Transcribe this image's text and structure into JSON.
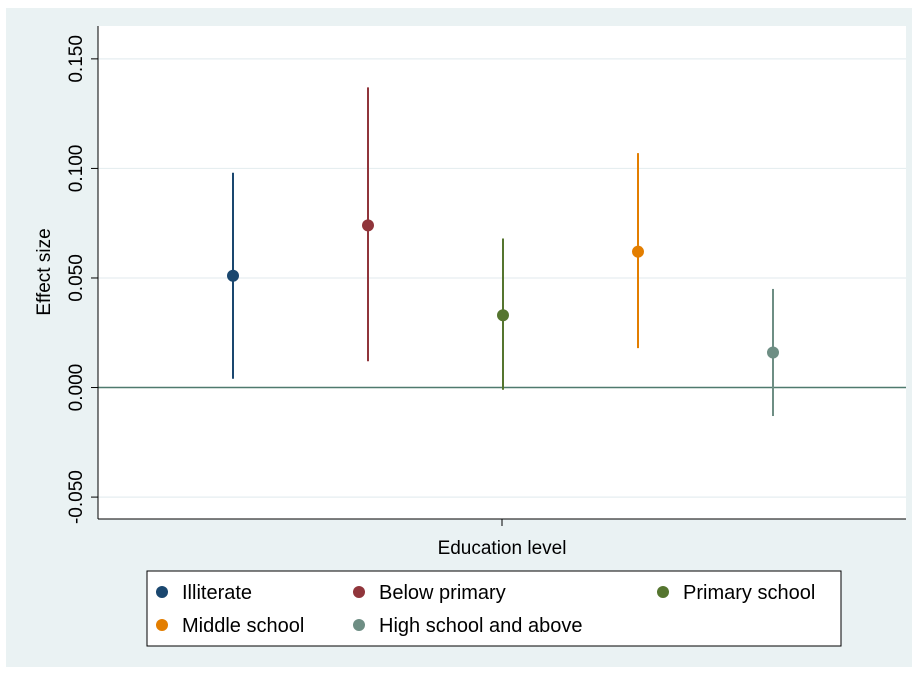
{
  "chart_data": {
    "type": "scatter",
    "subtype": "point estimates with confidence intervals",
    "xlabel": "Education level",
    "ylabel": "Effect size",
    "ylim": [
      -0.06,
      0.165
    ],
    "yticks": [
      -0.05,
      0.0,
      0.05,
      0.1,
      0.15
    ],
    "ytick_labels": [
      "-0.050",
      "0.000",
      "0.050",
      "0.100",
      "0.150"
    ],
    "grid": true,
    "reference_line_y": 0,
    "legend_position": "bottom",
    "series": [
      {
        "name": "Illiterate",
        "color": "#1a476f",
        "estimate": 0.051,
        "ci_low": 0.004,
        "ci_high": 0.098
      },
      {
        "name": "Below primary",
        "color": "#90353b",
        "estimate": 0.074,
        "ci_low": 0.012,
        "ci_high": 0.137
      },
      {
        "name": "Primary school",
        "color": "#55752f",
        "estimate": 0.033,
        "ci_low": -0.001,
        "ci_high": 0.068
      },
      {
        "name": "Middle school",
        "color": "#e37e00",
        "estimate": 0.062,
        "ci_low": 0.018,
        "ci_high": 0.107
      },
      {
        "name": "High school and above",
        "color": "#6e8e84",
        "estimate": 0.016,
        "ci_low": -0.013,
        "ci_high": 0.045
      }
    ]
  }
}
